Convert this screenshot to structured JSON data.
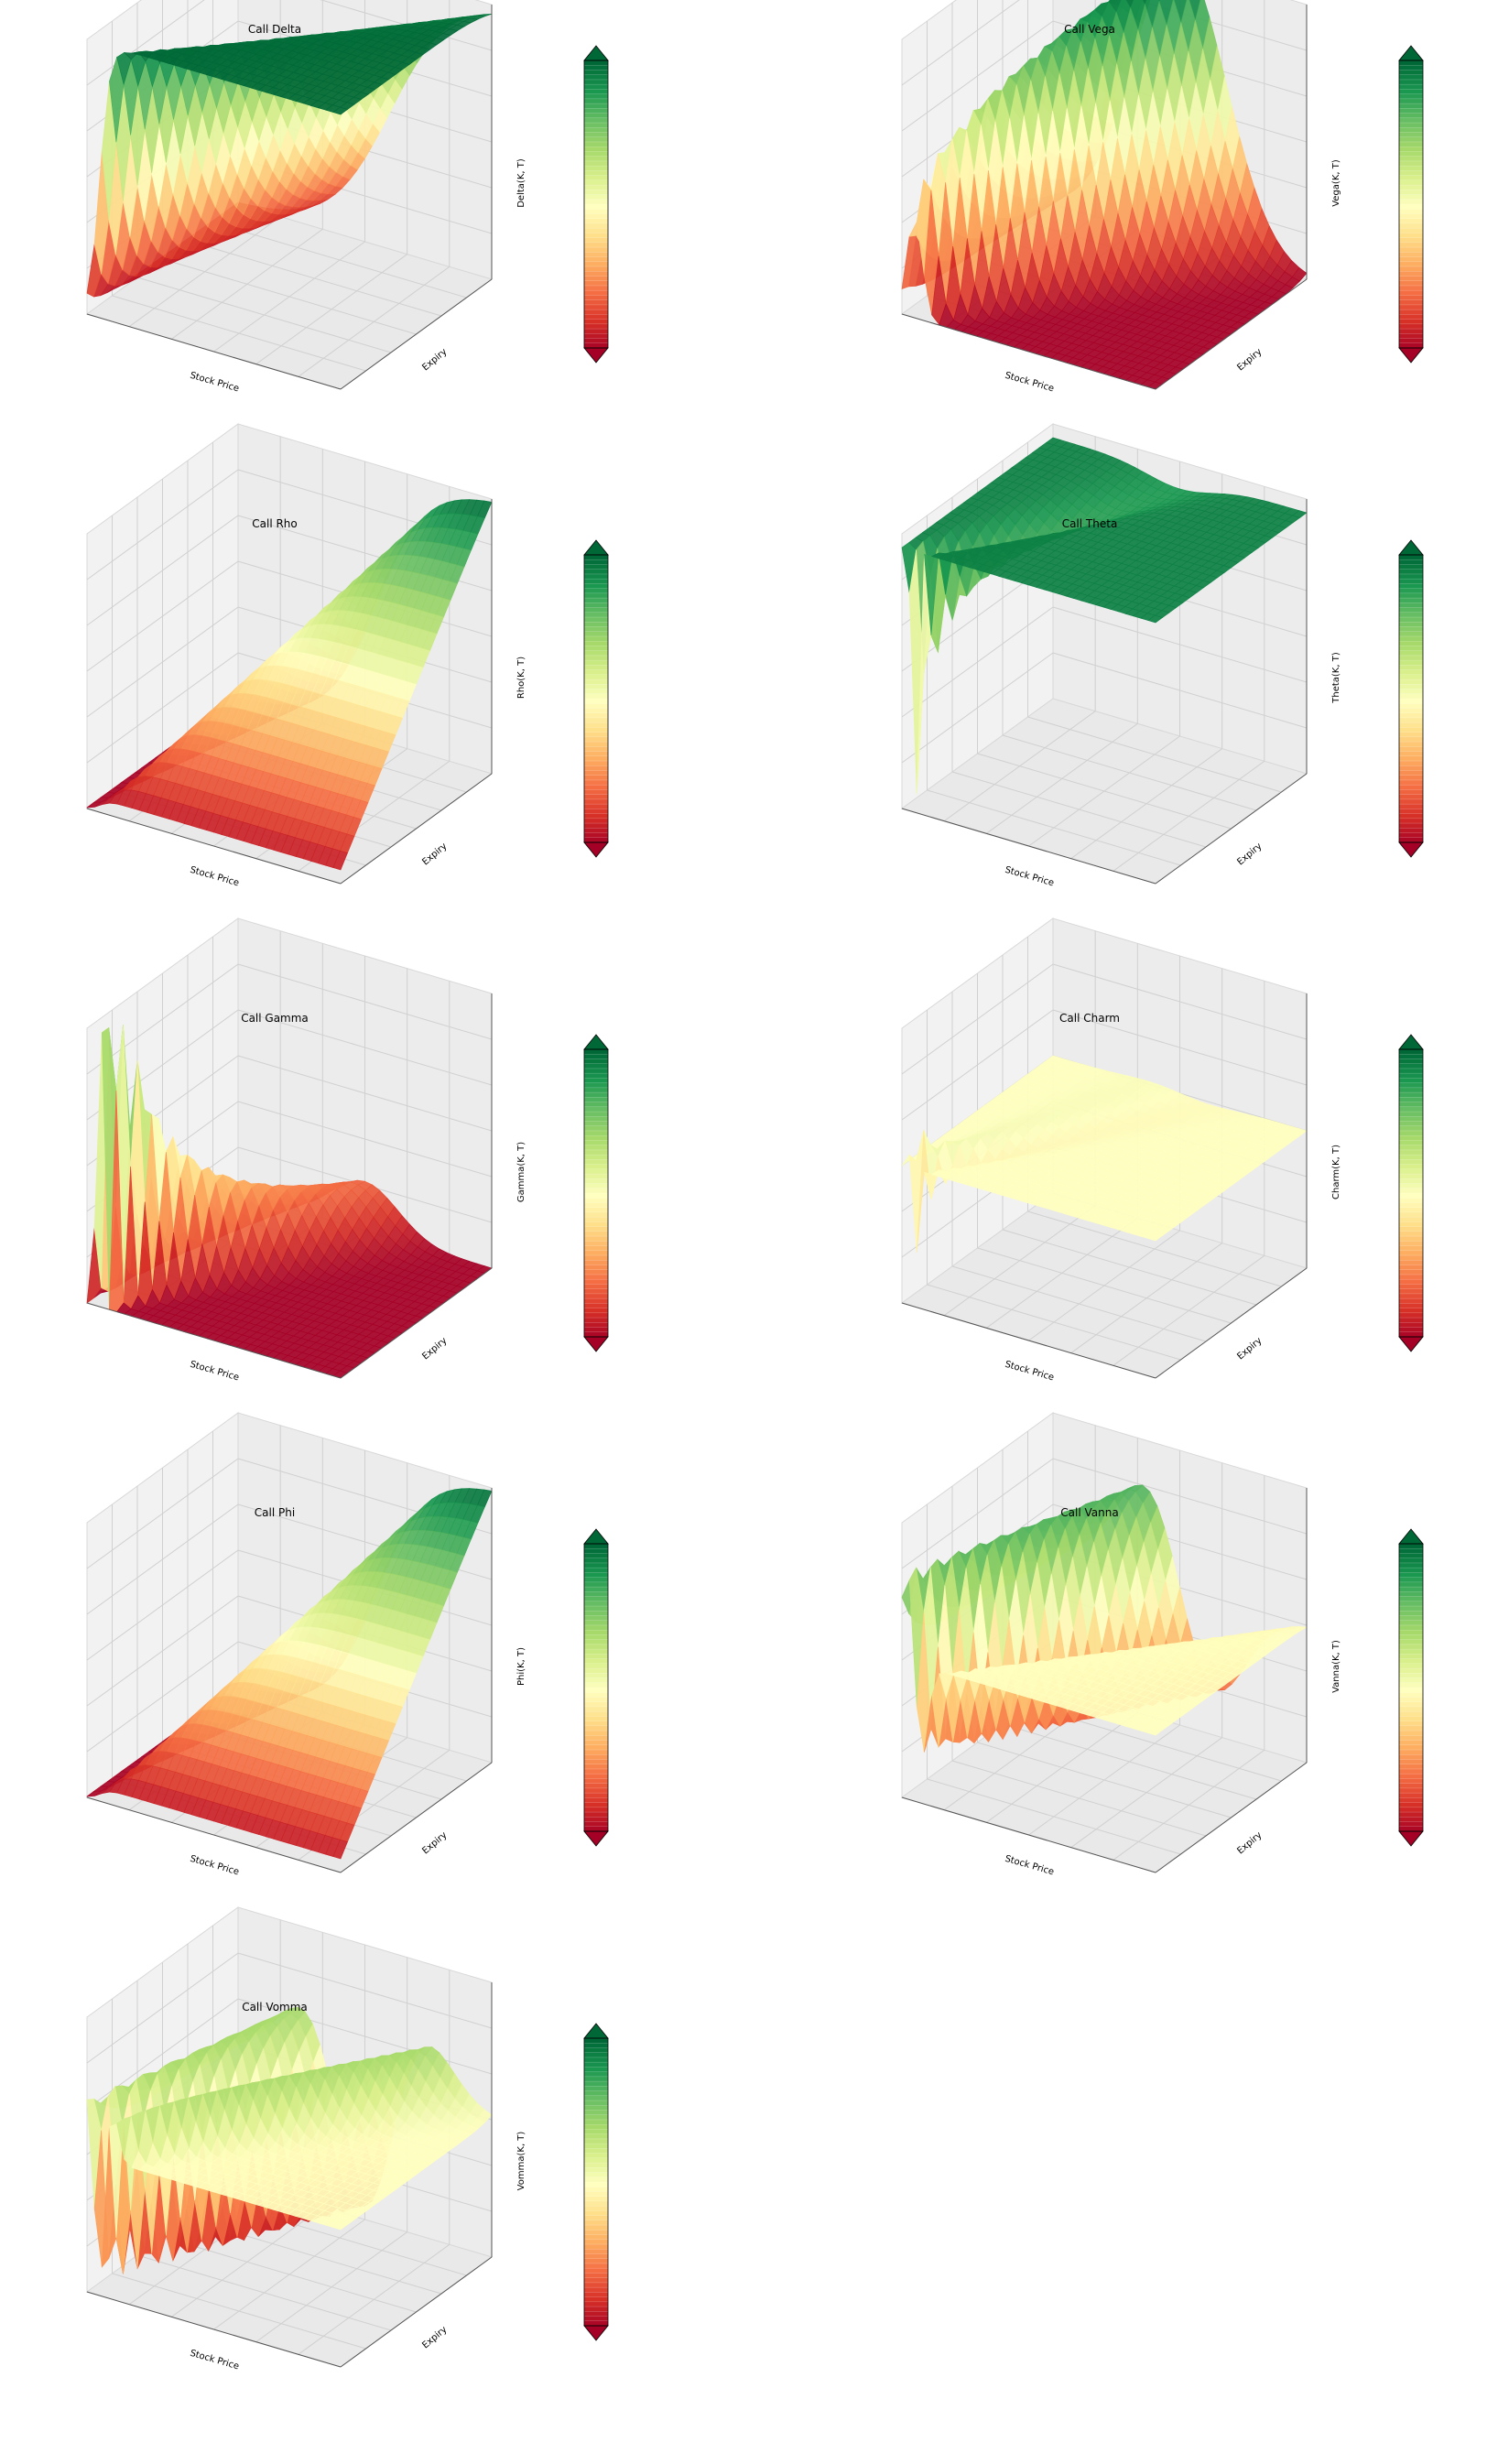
{
  "figure": {
    "background": "#ffffff",
    "colormap": "RdYlGn",
    "colormap_stops": [
      "#a50026",
      "#d73027",
      "#f46d43",
      "#fdae61",
      "#fee08b",
      "#ffffbf",
      "#d9ef8b",
      "#a6d96a",
      "#66bd63",
      "#1a9850",
      "#006837"
    ]
  },
  "chart_data": [
    {
      "type": "surface3d",
      "shape": "delta",
      "title": "Call Delta",
      "xlabel": "Stock Price",
      "ylabel": "Expiry",
      "colorbar_label": "Delta(K, T)",
      "grid": true
    },
    {
      "type": "surface3d",
      "shape": "vega",
      "title": "Call Vega",
      "xlabel": "Stock Price",
      "ylabel": "Expiry",
      "colorbar_label": "Vega(K, T)",
      "grid": true
    },
    {
      "type": "surface3d",
      "shape": "rho",
      "title": "Call Rho",
      "xlabel": "Stock Price",
      "ylabel": "Expiry",
      "colorbar_label": "Rho(K, T)",
      "grid": true
    },
    {
      "type": "surface3d",
      "shape": "theta",
      "title": "Call Theta",
      "xlabel": "Stock Price",
      "ylabel": "Expiry",
      "colorbar_label": "Theta(K, T)",
      "grid": true
    },
    {
      "type": "surface3d",
      "shape": "gamma",
      "title": "Call Gamma",
      "xlabel": "Stock Price",
      "ylabel": "Expiry",
      "colorbar_label": "Gamma(K, T)",
      "grid": true
    },
    {
      "type": "surface3d",
      "shape": "charm",
      "title": "Call Charm",
      "xlabel": "Stock Price",
      "ylabel": "Expiry",
      "colorbar_label": "Charm(K, T)",
      "grid": true
    },
    {
      "type": "surface3d",
      "shape": "phi",
      "title": "Call Phi",
      "xlabel": "Stock Price",
      "ylabel": "Expiry",
      "colorbar_label": "Phi(K, T)",
      "grid": true
    },
    {
      "type": "surface3d",
      "shape": "vanna",
      "title": "Call Vanna",
      "xlabel": "Stock Price",
      "ylabel": "Expiry",
      "colorbar_label": "Vanna(K, T)",
      "grid": true
    },
    {
      "type": "surface3d",
      "shape": "vomma",
      "title": "Call Vomma",
      "xlabel": "Stock Price",
      "ylabel": "Expiry",
      "colorbar_label": "Vomma(K, T)",
      "grid": true
    }
  ]
}
